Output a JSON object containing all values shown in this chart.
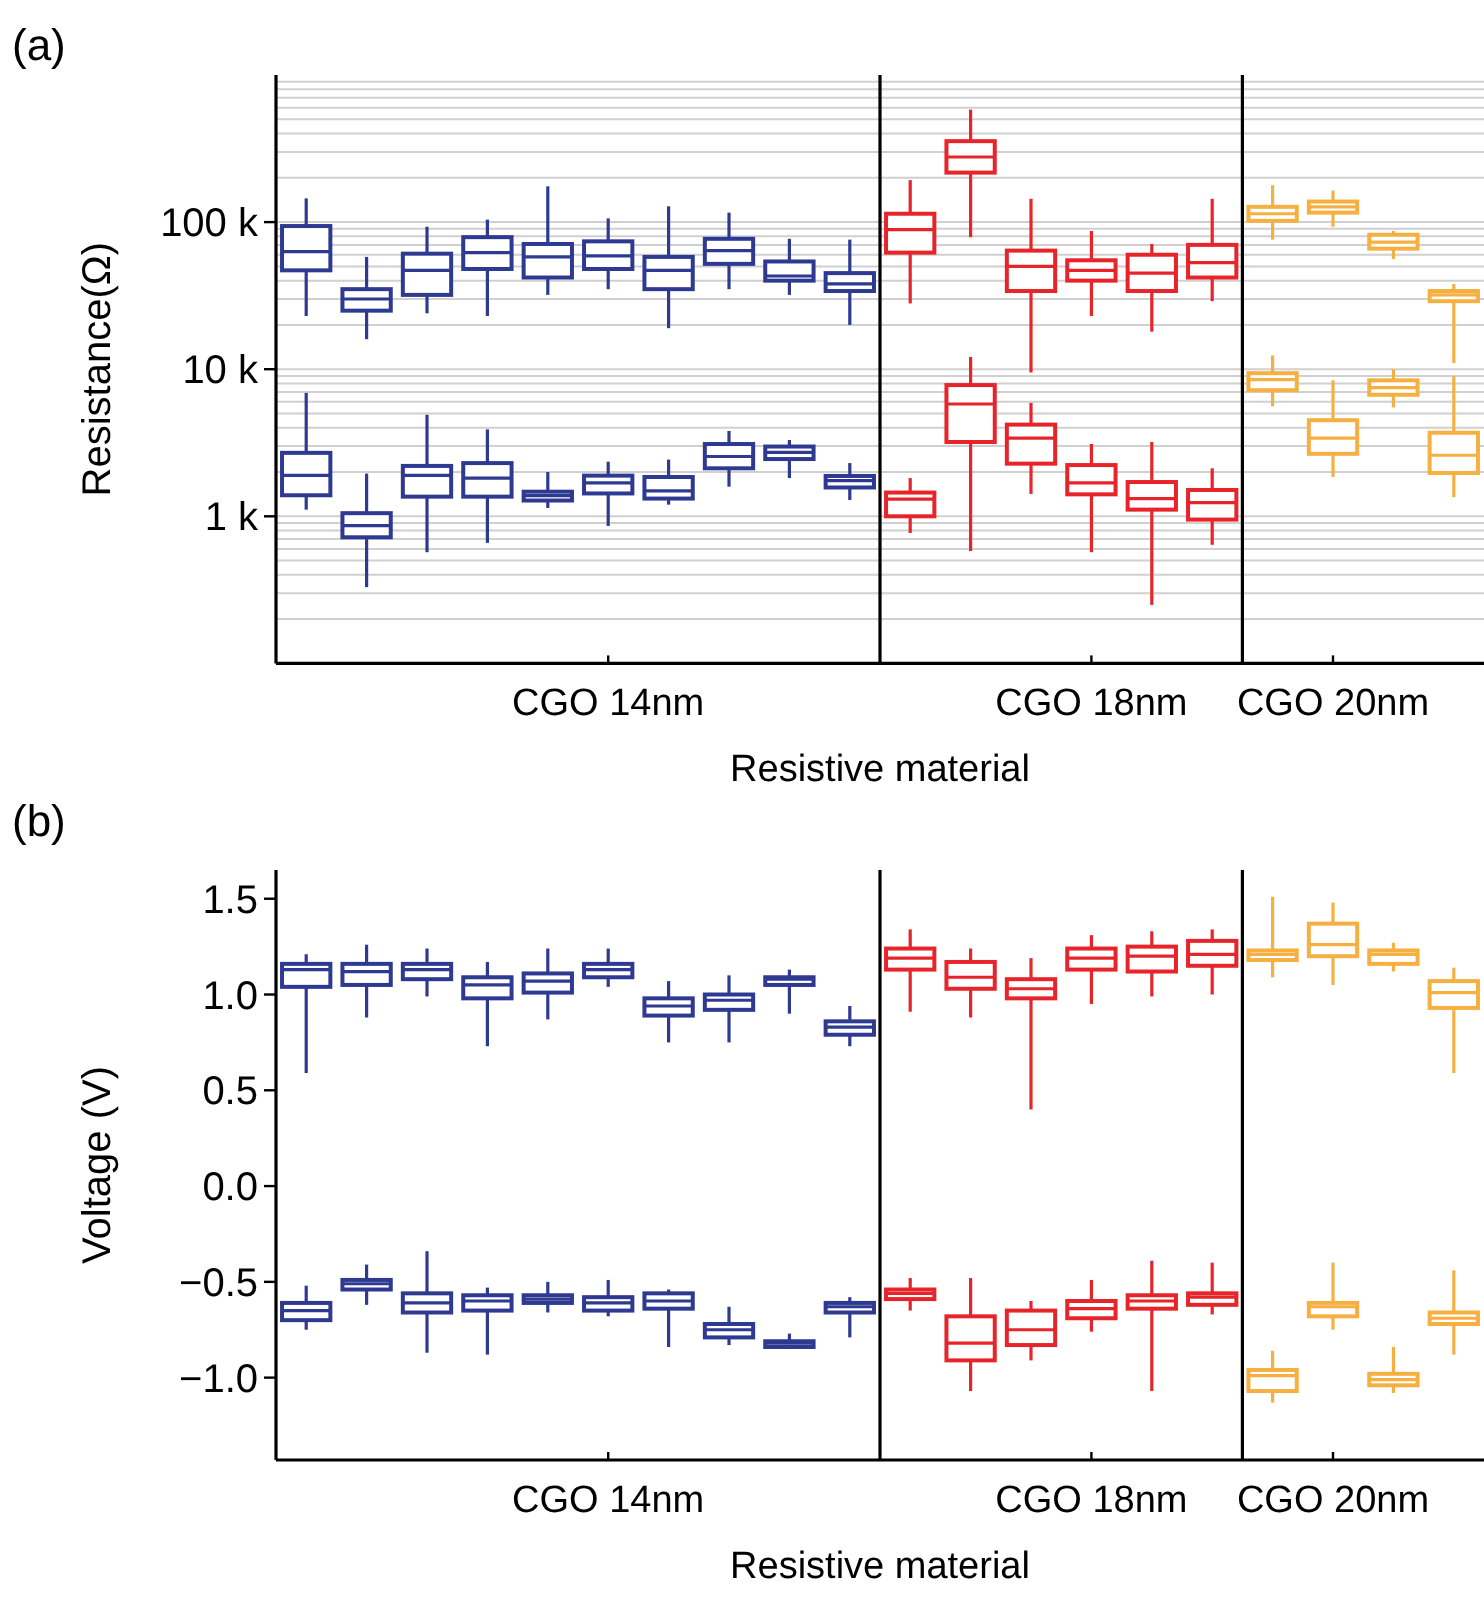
{
  "chart_data": [
    {
      "type": "box",
      "title": "(a)",
      "xlabel": "Resistive material",
      "ylabel": "Resistance(Ω)",
      "log": "y",
      "grid": "y",
      "categories": [
        null,
        null,
        null,
        null,
        null,
        "CGO 14nm",
        null,
        null,
        null,
        null,
        null,
        null,
        null,
        "CGO 18nm",
        null,
        null,
        null,
        "CGO 20nm",
        null,
        null
      ],
      "ylim": [
        100,
        1000000
      ],
      "yticks": [
        {
          "value": 200,
          "label": null
        },
        {
          "value": 300,
          "label": null
        },
        {
          "value": 400,
          "label": null
        },
        {
          "value": 500,
          "label": null
        },
        {
          "value": 600,
          "label": null
        },
        {
          "value": 700,
          "label": null
        },
        {
          "value": 800,
          "label": null
        },
        {
          "value": 900,
          "label": null
        },
        {
          "value": 1000,
          "label": "1 k"
        },
        {
          "value": 2000,
          "label": null
        },
        {
          "value": 3000,
          "label": null
        },
        {
          "value": 4000,
          "label": null
        },
        {
          "value": 5000,
          "label": null
        },
        {
          "value": 6000,
          "label": null
        },
        {
          "value": 7000,
          "label": null
        },
        {
          "value": 8000,
          "label": null
        },
        {
          "value": 9000,
          "label": null
        },
        {
          "value": 10000,
          "label": "10 k"
        },
        {
          "value": 20000,
          "label": null
        },
        {
          "value": 30000,
          "label": null
        },
        {
          "value": 40000,
          "label": null
        },
        {
          "value": 50000,
          "label": null
        },
        {
          "value": 60000,
          "label": null
        },
        {
          "value": 70000,
          "label": null
        },
        {
          "value": 80000,
          "label": null
        },
        {
          "value": 90000,
          "label": null
        },
        {
          "value": 100000,
          "label": "100 k"
        },
        {
          "value": 200000,
          "label": null
        },
        {
          "value": 300000,
          "label": null
        },
        {
          "value": 400000,
          "label": null
        },
        {
          "value": 500000,
          "label": null
        },
        {
          "value": 600000,
          "label": null
        },
        {
          "value": 700000,
          "label": null
        },
        {
          "value": 800000,
          "label": null
        },
        {
          "value": 900000,
          "label": null
        }
      ],
      "series": [
        {
          "colors": [
            "#2e3a92",
            "#2e3a92",
            "#2e3a92",
            "#2e3a92",
            "#2e3a92",
            "#2e3a92",
            "#2e3a92",
            "#2e3a92",
            "#2e3a92",
            "#2e3a92",
            "#e8242b",
            "#e8242b",
            "#e8242b",
            "#e8242b",
            "#e8242b",
            "#e8242b",
            "#f6b042",
            "#f6b042",
            "#f6b042",
            "#f6b042"
          ],
          "boxes": [
            {
              "low": 23000,
              "q1": 47000,
              "median": 63000,
              "q3": 94000,
              "high": 145000
            },
            {
              "low": 16000,
              "q1": 25000,
              "median": 30000,
              "q3": 35000,
              "high": 58000
            },
            {
              "low": 24000,
              "q1": 32000,
              "median": 47000,
              "q3": 61000,
              "high": 93000
            },
            {
              "low": 23000,
              "q1": 48000,
              "median": 62000,
              "q3": 79000,
              "high": 104000
            },
            {
              "low": 32000,
              "q1": 42000,
              "median": 58000,
              "q3": 71000,
              "high": 175000
            },
            {
              "low": 35000,
              "q1": 48000,
              "median": 59000,
              "q3": 74000,
              "high": 106000
            },
            {
              "low": 19000,
              "q1": 35000,
              "median": 47000,
              "q3": 58000,
              "high": 128000
            },
            {
              "low": 35000,
              "q1": 52000,
              "median": 64000,
              "q3": 77000,
              "high": 116000
            },
            {
              "low": 32000,
              "q1": 40000,
              "median": 43000,
              "q3": 54000,
              "high": 77000
            },
            {
              "low": 20000,
              "q1": 34000,
              "median": 38000,
              "q3": 45000,
              "high": 76000
            },
            {
              "low": 28000,
              "q1": 62000,
              "median": 89000,
              "q3": 114000,
              "high": 193000
            },
            {
              "low": 79000,
              "q1": 217000,
              "median": 277000,
              "q3": 355000,
              "high": 582000
            },
            {
              "low": 9500,
              "q1": 34000,
              "median": 50000,
              "q3": 64000,
              "high": 144000
            },
            {
              "low": 23000,
              "q1": 40000,
              "median": 47000,
              "q3": 55000,
              "high": 87000
            },
            {
              "low": 18000,
              "q1": 34000,
              "median": 45000,
              "q3": 60000,
              "high": 71000
            },
            {
              "low": 29000,
              "q1": 42000,
              "median": 53000,
              "q3": 70000,
              "high": 144000
            },
            {
              "low": 76000,
              "q1": 102000,
              "median": 114000,
              "q3": 127000,
              "high": 178000
            },
            {
              "low": 93000,
              "q1": 116000,
              "median": 127000,
              "q3": 138000,
              "high": 164000
            },
            {
              "low": 56000,
              "q1": 66000,
              "median": 73000,
              "q3": 82000,
              "high": 87000
            },
            {
              "low": 11000,
              "q1": 29000,
              "median": 32000,
              "q3": 34000,
              "high": 38000
            }
          ]
        },
        {
          "colors": [
            "#2e3a92",
            "#2e3a92",
            "#2e3a92",
            "#2e3a92",
            "#2e3a92",
            "#2e3a92",
            "#2e3a92",
            "#2e3a92",
            "#2e3a92",
            "#2e3a92",
            "#e8242b",
            "#e8242b",
            "#e8242b",
            "#e8242b",
            "#e8242b",
            "#e8242b",
            "#f6b042",
            "#f6b042",
            "#f6b042",
            "#f6b042"
          ],
          "boxes": [
            {
              "low": 1110,
              "q1": 1390,
              "median": 1900,
              "q3": 2700,
              "high": 6900
            },
            {
              "low": 330,
              "q1": 720,
              "median": 865,
              "q3": 1050,
              "high": 1950
            },
            {
              "low": 570,
              "q1": 1360,
              "median": 1900,
              "q3": 2200,
              "high": 4900
            },
            {
              "low": 660,
              "q1": 1360,
              "median": 1820,
              "q3": 2300,
              "high": 3900
            },
            {
              "low": 1140,
              "q1": 1280,
              "median": 1380,
              "q3": 1470,
              "high": 2000
            },
            {
              "low": 860,
              "q1": 1430,
              "median": 1690,
              "q3": 1890,
              "high": 2350
            },
            {
              "low": 1200,
              "q1": 1320,
              "median": 1490,
              "q3": 1850,
              "high": 2430
            },
            {
              "low": 1590,
              "q1": 2120,
              "median": 2550,
              "q3": 3100,
              "high": 3800
            },
            {
              "low": 1820,
              "q1": 2450,
              "median": 2720,
              "q3": 2980,
              "high": 3300
            },
            {
              "low": 1290,
              "q1": 1570,
              "median": 1750,
              "q3": 1880,
              "high": 2300
            },
            {
              "low": 770,
              "q1": 1000,
              "median": 1310,
              "q3": 1450,
              "high": 1820
            },
            {
              "low": 580,
              "q1": 3200,
              "median": 5800,
              "q3": 7800,
              "high": 12100
            },
            {
              "low": 1420,
              "q1": 2280,
              "median": 3400,
              "q3": 4200,
              "high": 5900
            },
            {
              "low": 570,
              "q1": 1410,
              "median": 1690,
              "q3": 2230,
              "high": 3100
            },
            {
              "low": 250,
              "q1": 1110,
              "median": 1320,
              "q3": 1710,
              "high": 3200
            },
            {
              "low": 640,
              "q1": 950,
              "median": 1240,
              "q3": 1510,
              "high": 2120
            },
            {
              "low": 5600,
              "q1": 7200,
              "median": 8500,
              "q3": 9400,
              "high": 12400
            },
            {
              "low": 1850,
              "q1": 2660,
              "median": 3400,
              "q3": 4500,
              "high": 8400
            },
            {
              "low": 5500,
              "q1": 6700,
              "median": 7500,
              "q3": 8400,
              "high": 10000
            },
            {
              "low": 1350,
              "q1": 1970,
              "median": 2600,
              "q3": 3700,
              "high": 9000
            }
          ]
        }
      ]
    },
    {
      "type": "box",
      "title": "(b)",
      "xlabel": "Resistive material",
      "ylabel": "Voltage (V)",
      "categories": [
        null,
        null,
        null,
        null,
        null,
        "CGO 14nm",
        null,
        null,
        null,
        null,
        null,
        null,
        null,
        "CGO 18nm",
        null,
        null,
        null,
        "CGO 20nm",
        null,
        null
      ],
      "ylim": [
        -1.43,
        1.65
      ],
      "yticks": [
        {
          "value": -1,
          "label": "−1.0"
        },
        {
          "value": -0.5,
          "label": "−0.5"
        },
        {
          "value": 0,
          "label": "0.0"
        },
        {
          "value": 0.5,
          "label": "0.5"
        },
        {
          "value": 1,
          "label": "1.0"
        },
        {
          "value": 1.5,
          "label": "1.5"
        }
      ],
      "series": [
        {
          "colors": [
            "#2e3a92",
            "#2e3a92",
            "#2e3a92",
            "#2e3a92",
            "#2e3a92",
            "#2e3a92",
            "#2e3a92",
            "#2e3a92",
            "#2e3a92",
            "#2e3a92",
            "#e8242b",
            "#e8242b",
            "#e8242b",
            "#e8242b",
            "#e8242b",
            "#e8242b",
            "#f6b042",
            "#f6b042",
            "#f6b042",
            "#f6b042"
          ],
          "boxes": [
            {
              "low": 0.59,
              "q1": 1.04,
              "median": 1.13,
              "q3": 1.16,
              "high": 1.21
            },
            {
              "low": 0.88,
              "q1": 1.05,
              "median": 1.12,
              "q3": 1.16,
              "high": 1.26
            },
            {
              "low": 0.99,
              "q1": 1.08,
              "median": 1.13,
              "q3": 1.16,
              "high": 1.24
            },
            {
              "low": 0.73,
              "q1": 0.98,
              "median": 1.05,
              "q3": 1.09,
              "high": 1.17
            },
            {
              "low": 0.87,
              "q1": 1.01,
              "median": 1.07,
              "q3": 1.11,
              "high": 1.24
            },
            {
              "low": 1.04,
              "q1": 1.09,
              "median": 1.13,
              "q3": 1.16,
              "high": 1.24
            },
            {
              "low": 0.75,
              "q1": 0.89,
              "median": 0.94,
              "q3": 0.98,
              "high": 1.07
            },
            {
              "low": 0.75,
              "q1": 0.92,
              "median": 0.97,
              "q3": 1.0,
              "high": 1.1
            },
            {
              "low": 0.9,
              "q1": 1.05,
              "median": 1.08,
              "q3": 1.09,
              "high": 1.13
            },
            {
              "low": 0.73,
              "q1": 0.79,
              "median": 0.83,
              "q3": 0.86,
              "high": 0.94
            },
            {
              "low": 0.91,
              "q1": 1.13,
              "median": 1.19,
              "q3": 1.24,
              "high": 1.34
            },
            {
              "low": 0.88,
              "q1": 1.03,
              "median": 1.09,
              "q3": 1.17,
              "high": 1.24
            },
            {
              "low": 0.4,
              "q1": 0.98,
              "median": 1.03,
              "q3": 1.08,
              "high": 1.19
            },
            {
              "low": 0.95,
              "q1": 1.13,
              "median": 1.19,
              "q3": 1.24,
              "high": 1.31
            },
            {
              "low": 0.99,
              "q1": 1.12,
              "median": 1.2,
              "q3": 1.25,
              "high": 1.33
            },
            {
              "low": 1.0,
              "q1": 1.15,
              "median": 1.21,
              "q3": 1.28,
              "high": 1.34
            },
            {
              "low": 1.09,
              "q1": 1.18,
              "median": 1.21,
              "q3": 1.23,
              "high": 1.51
            },
            {
              "low": 1.05,
              "q1": 1.2,
              "median": 1.26,
              "q3": 1.37,
              "high": 1.48
            },
            {
              "low": 1.12,
              "q1": 1.16,
              "median": 1.21,
              "q3": 1.23,
              "high": 1.27
            },
            {
              "low": 0.59,
              "q1": 0.93,
              "median": 1.01,
              "q3": 1.07,
              "high": 1.14
            }
          ]
        },
        {
          "colors": [
            "#2e3a92",
            "#2e3a92",
            "#2e3a92",
            "#2e3a92",
            "#2e3a92",
            "#2e3a92",
            "#2e3a92",
            "#2e3a92",
            "#2e3a92",
            "#2e3a92",
            "#e8242b",
            "#e8242b",
            "#e8242b",
            "#e8242b",
            "#e8242b",
            "#e8242b",
            "#f6b042",
            "#f6b042",
            "#f6b042",
            "#f6b042"
          ],
          "boxes": [
            {
              "low": -0.75,
              "q1": -0.7,
              "median": -0.65,
              "q3": -0.61,
              "high": -0.52
            },
            {
              "low": -0.62,
              "q1": -0.54,
              "median": -0.51,
              "q3": -0.49,
              "high": -0.41
            },
            {
              "low": -0.87,
              "q1": -0.66,
              "median": -0.61,
              "q3": -0.56,
              "high": -0.34
            },
            {
              "low": -0.88,
              "q1": -0.65,
              "median": -0.6,
              "q3": -0.57,
              "high": -0.53
            },
            {
              "low": -0.66,
              "q1": -0.61,
              "median": -0.59,
              "q3": -0.57,
              "high": -0.5
            },
            {
              "low": -0.68,
              "q1": -0.65,
              "median": -0.61,
              "q3": -0.58,
              "high": -0.49
            },
            {
              "low": -0.84,
              "q1": -0.64,
              "median": -0.6,
              "q3": -0.56,
              "high": -0.54
            },
            {
              "low": -0.83,
              "q1": -0.79,
              "median": -0.75,
              "q3": -0.72,
              "high": -0.63
            },
            {
              "low": -0.85,
              "q1": -0.84,
              "median": -0.82,
              "q3": -0.81,
              "high": -0.77
            },
            {
              "low": -0.79,
              "q1": -0.66,
              "median": -0.63,
              "q3": -0.61,
              "high": -0.58
            },
            {
              "low": -0.65,
              "q1": -0.59,
              "median": -0.56,
              "q3": -0.54,
              "high": -0.48
            },
            {
              "low": -1.07,
              "q1": -0.91,
              "median": -0.82,
              "q3": -0.68,
              "high": -0.48
            },
            {
              "low": -0.91,
              "q1": -0.83,
              "median": -0.75,
              "q3": -0.65,
              "high": -0.6
            },
            {
              "low": -0.76,
              "q1": -0.69,
              "median": -0.64,
              "q3": -0.6,
              "high": -0.49
            },
            {
              "low": -1.07,
              "q1": -0.64,
              "median": -0.6,
              "q3": -0.57,
              "high": -0.39
            },
            {
              "low": -0.67,
              "q1": -0.62,
              "median": -0.58,
              "q3": -0.56,
              "high": -0.4
            },
            {
              "low": -1.13,
              "q1": -1.07,
              "median": -0.99,
              "q3": -0.96,
              "high": -0.86
            },
            {
              "low": -0.75,
              "q1": -0.68,
              "median": -0.63,
              "q3": -0.61,
              "high": -0.4
            },
            {
              "low": -1.08,
              "q1": -1.04,
              "median": -1.01,
              "q3": -0.98,
              "high": -0.84
            },
            {
              "low": -0.88,
              "q1": -0.72,
              "median": -0.69,
              "q3": -0.66,
              "high": -0.44
            }
          ]
        }
      ]
    }
  ]
}
